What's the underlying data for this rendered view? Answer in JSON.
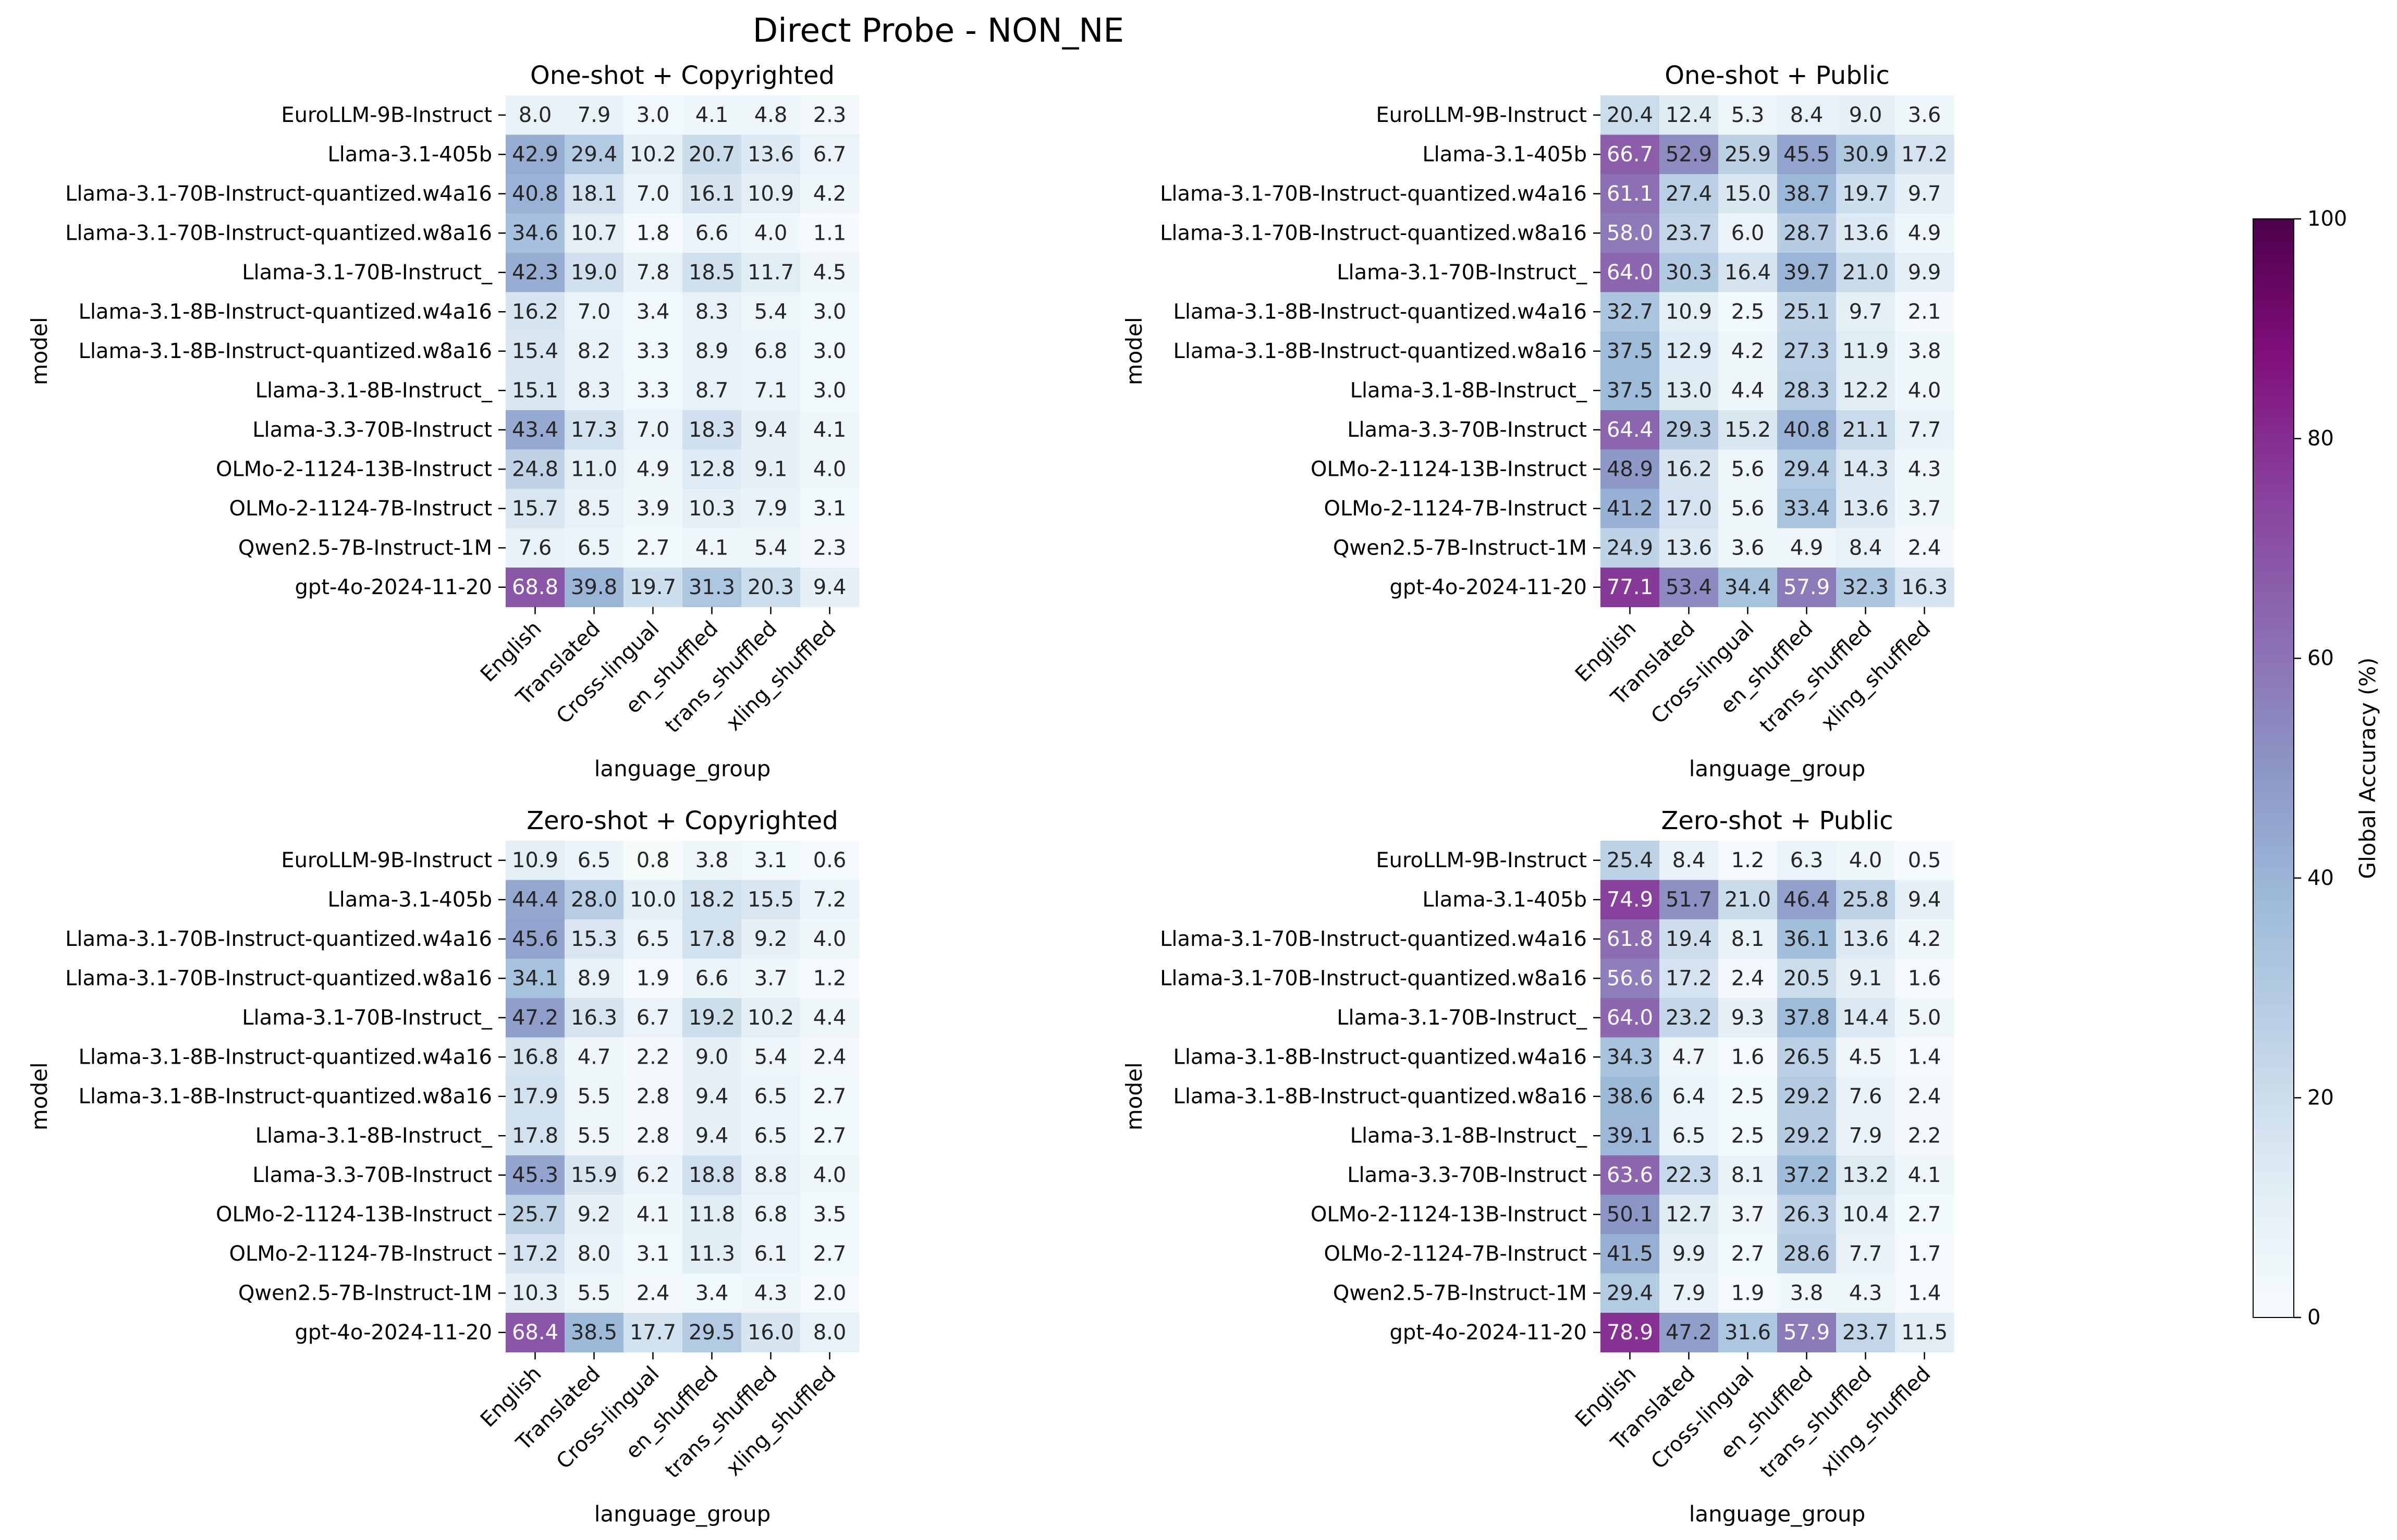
{
  "figure": {
    "title": "Direct Probe - NON_NE"
  },
  "chart_data": {
    "type": "heatmap",
    "models": [
      "EuroLLM-9B-Instruct",
      "Llama-3.1-405b",
      "Llama-3.1-70B-Instruct-quantized.w4a16",
      "Llama-3.1-70B-Instruct-quantized.w8a16",
      "Llama-3.1-70B-Instruct_",
      "Llama-3.1-8B-Instruct-quantized.w4a16",
      "Llama-3.1-8B-Instruct-quantized.w8a16",
      "Llama-3.1-8B-Instruct_",
      "Llama-3.3-70B-Instruct",
      "OLMo-2-1124-13B-Instruct",
      "OLMo-2-1124-7B-Instruct",
      "Qwen2.5-7B-Instruct-1M",
      "gpt-4o-2024-11-20"
    ],
    "language_groups": [
      "English",
      "Translated",
      "Cross-lingual",
      "en_shuffled",
      "trans_shuffled",
      "xling_shuffled"
    ],
    "xlabel": "language_group",
    "ylabel": "model",
    "colorbar": {
      "label": "Global Accuracy (%)",
      "range": [
        0,
        100
      ],
      "ticks": [
        0,
        20,
        40,
        60,
        80,
        100
      ],
      "colormap": "BuPu",
      "stops": [
        "#f7fcfd",
        "#e0ecf4",
        "#bfd3e6",
        "#9ebcda",
        "#8c96c6",
        "#8c6bb1",
        "#88419d",
        "#810f7c",
        "#4d004b"
      ]
    },
    "panels": [
      {
        "title": "One-shot + Copyrighted",
        "values": [
          [
            8.0,
            7.9,
            3.0,
            4.1,
            4.8,
            2.3
          ],
          [
            42.9,
            29.4,
            10.2,
            20.7,
            13.6,
            6.7
          ],
          [
            40.8,
            18.1,
            7.0,
            16.1,
            10.9,
            4.2
          ],
          [
            34.6,
            10.7,
            1.8,
            6.6,
            4.0,
            1.1
          ],
          [
            42.3,
            19.0,
            7.8,
            18.5,
            11.7,
            4.5
          ],
          [
            16.2,
            7.0,
            3.4,
            8.3,
            5.4,
            3.0
          ],
          [
            15.4,
            8.2,
            3.3,
            8.9,
            6.8,
            3.0
          ],
          [
            15.1,
            8.3,
            3.3,
            8.7,
            7.1,
            3.0
          ],
          [
            43.4,
            17.3,
            7.0,
            18.3,
            9.4,
            4.1
          ],
          [
            24.8,
            11.0,
            4.9,
            12.8,
            9.1,
            4.0
          ],
          [
            15.7,
            8.5,
            3.9,
            10.3,
            7.9,
            3.1
          ],
          [
            7.6,
            6.5,
            2.7,
            4.1,
            5.4,
            2.3
          ],
          [
            68.8,
            39.8,
            19.7,
            31.3,
            20.3,
            9.4
          ]
        ]
      },
      {
        "title": "One-shot + Public",
        "values": [
          [
            20.4,
            12.4,
            5.3,
            8.4,
            9.0,
            3.6
          ],
          [
            66.7,
            52.9,
            25.9,
            45.5,
            30.9,
            17.2
          ],
          [
            61.1,
            27.4,
            15.0,
            38.7,
            19.7,
            9.7
          ],
          [
            58.0,
            23.7,
            6.0,
            28.7,
            13.6,
            4.9
          ],
          [
            64.0,
            30.3,
            16.4,
            39.7,
            21.0,
            9.9
          ],
          [
            32.7,
            10.9,
            2.5,
            25.1,
            9.7,
            2.1
          ],
          [
            37.5,
            12.9,
            4.2,
            27.3,
            11.9,
            3.8
          ],
          [
            37.5,
            13.0,
            4.4,
            28.3,
            12.2,
            4.0
          ],
          [
            64.4,
            29.3,
            15.2,
            40.8,
            21.1,
            7.7
          ],
          [
            48.9,
            16.2,
            5.6,
            29.4,
            14.3,
            4.3
          ],
          [
            41.2,
            17.0,
            5.6,
            33.4,
            13.6,
            3.7
          ],
          [
            24.9,
            13.6,
            3.6,
            4.9,
            8.4,
            2.4
          ],
          [
            77.1,
            53.4,
            34.4,
            57.9,
            32.3,
            16.3
          ]
        ]
      },
      {
        "title": "Zero-shot + Copyrighted",
        "values": [
          [
            10.9,
            6.5,
            0.8,
            3.8,
            3.1,
            0.6
          ],
          [
            44.4,
            28.0,
            10.0,
            18.2,
            15.5,
            7.2
          ],
          [
            45.6,
            15.3,
            6.5,
            17.8,
            9.2,
            4.0
          ],
          [
            34.1,
            8.9,
            1.9,
            6.6,
            3.7,
            1.2
          ],
          [
            47.2,
            16.3,
            6.7,
            19.2,
            10.2,
            4.4
          ],
          [
            16.8,
            4.7,
            2.2,
            9.0,
            5.4,
            2.4
          ],
          [
            17.9,
            5.5,
            2.8,
            9.4,
            6.5,
            2.7
          ],
          [
            17.8,
            5.5,
            2.8,
            9.4,
            6.5,
            2.7
          ],
          [
            45.3,
            15.9,
            6.2,
            18.8,
            8.8,
            4.0
          ],
          [
            25.7,
            9.2,
            4.1,
            11.8,
            6.8,
            3.5
          ],
          [
            17.2,
            8.0,
            3.1,
            11.3,
            6.1,
            2.7
          ],
          [
            10.3,
            5.5,
            2.4,
            3.4,
            4.3,
            2.0
          ],
          [
            68.4,
            38.5,
            17.7,
            29.5,
            16.0,
            8.0
          ]
        ]
      },
      {
        "title": "Zero-shot + Public",
        "values": [
          [
            25.4,
            8.4,
            1.2,
            6.3,
            4.0,
            0.5
          ],
          [
            74.9,
            51.7,
            21.0,
            46.4,
            25.8,
            9.4
          ],
          [
            61.8,
            19.4,
            8.1,
            36.1,
            13.6,
            4.2
          ],
          [
            56.6,
            17.2,
            2.4,
            20.5,
            9.1,
            1.6
          ],
          [
            64.0,
            23.2,
            9.3,
            37.8,
            14.4,
            5.0
          ],
          [
            34.3,
            4.7,
            1.6,
            26.5,
            4.5,
            1.4
          ],
          [
            38.6,
            6.4,
            2.5,
            29.2,
            7.6,
            2.4
          ],
          [
            39.1,
            6.5,
            2.5,
            29.2,
            7.9,
            2.2
          ],
          [
            63.6,
            22.3,
            8.1,
            37.2,
            13.2,
            4.1
          ],
          [
            50.1,
            12.7,
            3.7,
            26.3,
            10.4,
            2.7
          ],
          [
            41.5,
            9.9,
            2.7,
            28.6,
            7.7,
            1.7
          ],
          [
            29.4,
            7.9,
            1.9,
            3.8,
            4.3,
            1.4
          ],
          [
            78.9,
            47.2,
            31.6,
            57.9,
            23.7,
            11.5
          ]
        ]
      }
    ]
  }
}
